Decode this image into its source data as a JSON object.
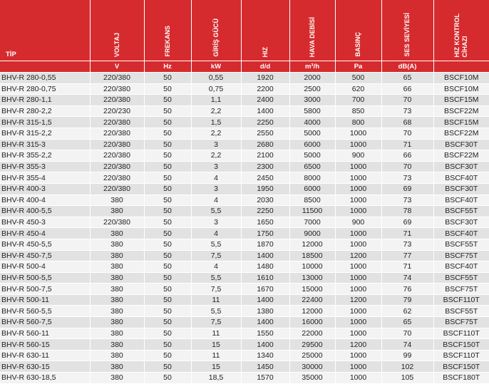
{
  "table": {
    "headers": [
      "TİP",
      "VOLTAJ",
      "FREKANS",
      "GİRİŞ GÜCÜ",
      "HIZ",
      "HAVA DEBİSİ",
      "BASINÇ",
      "SES SEVİYESİ",
      "HIZ KONTROL\nCİHAZI"
    ],
    "units": [
      "",
      "V",
      "Hz",
      "kW",
      "d/d",
      "m³/h",
      "Pa",
      "dB(A)",
      ""
    ],
    "rows": [
      [
        "BHV-R 280-0,55",
        "220/380",
        "50",
        "0,55",
        "1920",
        "2000",
        "500",
        "65",
        "BSCF10M"
      ],
      [
        "BHV-R 280-0,75",
        "220/380",
        "50",
        "0,75",
        "2200",
        "2500",
        "620",
        "66",
        "BSCF10M"
      ],
      [
        "BHV-R 280-1,1",
        "220/380",
        "50",
        "1,1",
        "2400",
        "3000",
        "700",
        "70",
        "BSCF15M"
      ],
      [
        "BHV-R 280-2,2",
        "220/230",
        "50",
        "2,2",
        "1400",
        "5800",
        "850",
        "73",
        "BSCF22M"
      ],
      [
        "BHV-R 315-1,5",
        "220/380",
        "50",
        "1,5",
        "2250",
        "4000",
        "800",
        "68",
        "BSCF15M"
      ],
      [
        "BHV-R 315-2,2",
        "220/380",
        "50",
        "2,2",
        "2550",
        "5000",
        "1000",
        "70",
        "BSCF22M"
      ],
      [
        "BHV-R 315-3",
        "220/380",
        "50",
        "3",
        "2680",
        "6000",
        "1000",
        "71",
        "BSCF30T"
      ],
      [
        "BHV-R 355-2,2",
        "220/380",
        "50",
        "2,2",
        "2100",
        "5000",
        "900",
        "66",
        "BSCF22M"
      ],
      [
        "BHV-R 355-3",
        "220/380",
        "50",
        "3",
        "2300",
        "6500",
        "1000",
        "70",
        "BSCF30T"
      ],
      [
        "BHV-R 355-4",
        "220/380",
        "50",
        "4",
        "2450",
        "8000",
        "1000",
        "73",
        "BSCF40T"
      ],
      [
        "BHV-R 400-3",
        "220/380",
        "50",
        "3",
        "1950",
        "6000",
        "1000",
        "69",
        "BSCF30T"
      ],
      [
        "BHV-R 400-4",
        "380",
        "50",
        "4",
        "2030",
        "8500",
        "1000",
        "73",
        "BSCF40T"
      ],
      [
        "BHV-R 400-5,5",
        "380",
        "50",
        "5,5",
        "2250",
        "11500",
        "1000",
        "78",
        "BSCF55T"
      ],
      [
        "BHV-R 450-3",
        "220/380",
        "50",
        "3",
        "1650",
        "7000",
        "900",
        "69",
        "BSCF30T"
      ],
      [
        "BHV-R 450-4",
        "380",
        "50",
        "4",
        "1750",
        "9000",
        "1000",
        "71",
        "BSCF40T"
      ],
      [
        "BHV-R 450-5,5",
        "380",
        "50",
        "5,5",
        "1870",
        "12000",
        "1000",
        "73",
        "BSCF55T"
      ],
      [
        "BHV-R 450-7,5",
        "380",
        "50",
        "7,5",
        "1400",
        "18500",
        "1200",
        "77",
        "BSCF75T"
      ],
      [
        "BHV-R 500-4",
        "380",
        "50",
        "4",
        "1480",
        "10000",
        "1000",
        "71",
        "BSCF40T"
      ],
      [
        "BHV-R 500-5,5",
        "380",
        "50",
        "5,5",
        "1610",
        "13000",
        "1000",
        "74",
        "BSCF55T"
      ],
      [
        "BHV-R 500-7,5",
        "380",
        "50",
        "7,5",
        "1670",
        "15000",
        "1000",
        "76",
        "BSCF75T"
      ],
      [
        "BHV-R 500-11",
        "380",
        "50",
        "11",
        "1400",
        "22400",
        "1200",
        "79",
        "BSCF110T"
      ],
      [
        "BHV-R 560-5,5",
        "380",
        "50",
        "5,5",
        "1380",
        "12000",
        "1000",
        "62",
        "BSCF55T"
      ],
      [
        "BHV-R 560-7,5",
        "380",
        "50",
        "7,5",
        "1400",
        "16000",
        "1000",
        "65",
        "BSCF75T"
      ],
      [
        "BHV-R 560-11",
        "380",
        "50",
        "11",
        "1550",
        "22000",
        "1000",
        "70",
        "BSCF110T"
      ],
      [
        "BHV-R 560-15",
        "380",
        "50",
        "15",
        "1400",
        "29500",
        "1200",
        "74",
        "BSCF150T"
      ],
      [
        "BHV-R 630-11",
        "380",
        "50",
        "11",
        "1340",
        "25000",
        "1000",
        "99",
        "BSCF110T"
      ],
      [
        "BHV-R 630-15",
        "380",
        "50",
        "15",
        "1450",
        "30000",
        "1000",
        "102",
        "BSCF150T"
      ],
      [
        "BHV-R 630-18,5",
        "380",
        "50",
        "18,5",
        "1570",
        "35000",
        "1000",
        "105",
        "BSCF180T"
      ]
    ]
  },
  "colors": {
    "header_bg": "#d52b2e",
    "row_odd": "#e2e2e2",
    "row_even": "#f3f3f3"
  }
}
